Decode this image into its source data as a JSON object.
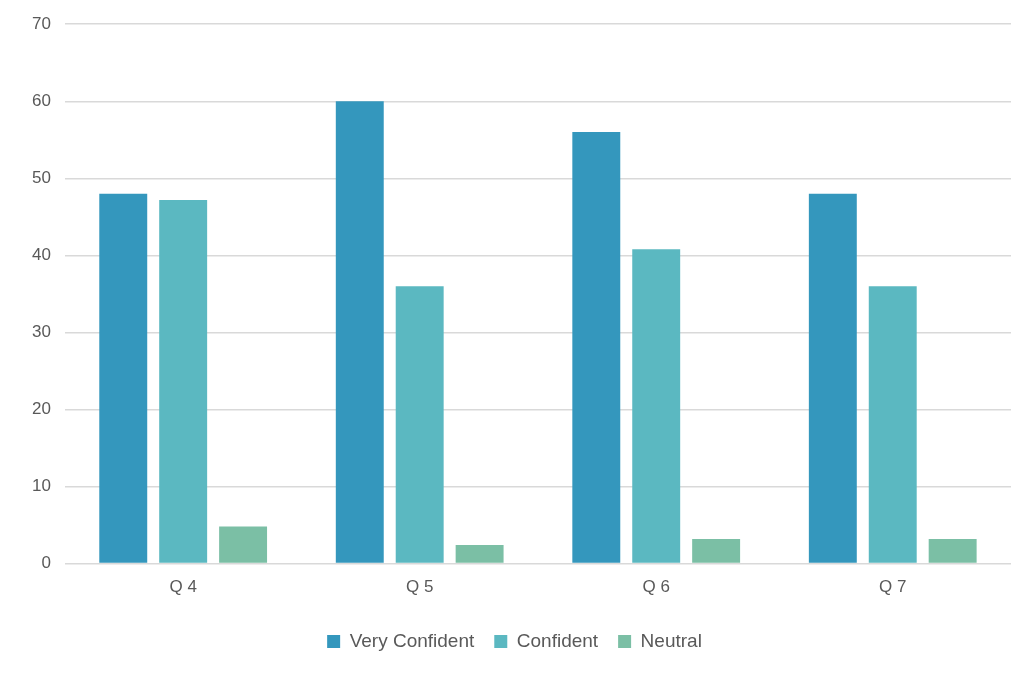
{
  "chart_data": {
    "type": "bar",
    "categories": [
      "Q 4",
      "Q 5",
      "Q 6",
      "Q 7"
    ],
    "series": [
      {
        "name": "Very Confident",
        "color": "#3497bd",
        "values": [
          48,
          60,
          56,
          48
        ]
      },
      {
        "name": "Confident",
        "color": "#5bb8c1",
        "values": [
          47.2,
          36,
          40.8,
          36
        ]
      },
      {
        "name": "Neutral",
        "color": "#7bbfa5",
        "values": [
          4.8,
          2.4,
          3.2,
          3.2
        ]
      }
    ],
    "ylim": [
      0,
      70
    ],
    "yticks": [
      0,
      10,
      20,
      30,
      40,
      50,
      60,
      70
    ],
    "grid": "y",
    "legend": "bottom"
  }
}
